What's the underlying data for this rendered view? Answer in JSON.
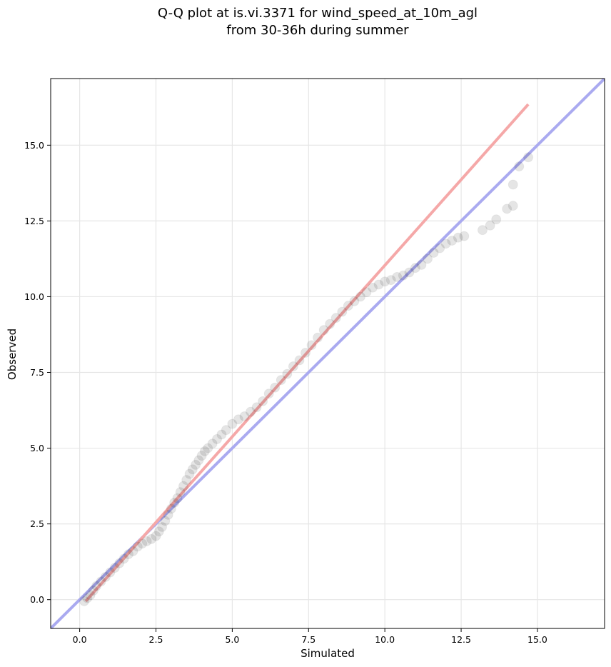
{
  "chart_data": {
    "type": "scatter",
    "title": "Q-Q plot at is.vi.3371 for wind_speed_at_10m_agl",
    "subtitle": "from 30-36h during summer",
    "xlabel": "Simulated",
    "ylabel": "Observed",
    "xlim": [
      -0.95,
      17.2
    ],
    "ylim": [
      -0.95,
      17.2
    ],
    "xticks": [
      0.0,
      2.5,
      5.0,
      7.5,
      10.0,
      12.5,
      15.0
    ],
    "yticks": [
      0.0,
      2.5,
      5.0,
      7.5,
      10.0,
      12.5,
      15.0
    ],
    "xtick_labels": [
      "0.0",
      "2.5",
      "5.0",
      "7.5",
      "10.0",
      "12.5",
      "15.0"
    ],
    "ytick_labels": [
      "0.0",
      "2.5",
      "5.0",
      "7.5",
      "10.0",
      "12.5",
      "15.0"
    ],
    "grid": true,
    "lines": [
      {
        "style": "one-to-one reference",
        "color": "#aaaaf0",
        "x": [
          -0.95,
          17.2
        ],
        "y": [
          -0.95,
          17.2
        ]
      },
      {
        "style": "fit",
        "color": "#f5a8a8",
        "x": [
          0.2,
          14.7
        ],
        "y": [
          -0.05,
          16.35
        ]
      }
    ],
    "series": [
      {
        "color": "#000000",
        "points": [
          [
            0.15,
            -0.05
          ],
          [
            0.25,
            0.05
          ],
          [
            0.35,
            0.15
          ],
          [
            0.45,
            0.3
          ],
          [
            0.55,
            0.45
          ],
          [
            0.7,
            0.6
          ],
          [
            0.85,
            0.75
          ],
          [
            1.0,
            0.9
          ],
          [
            1.15,
            1.05
          ],
          [
            1.3,
            1.2
          ],
          [
            1.45,
            1.35
          ],
          [
            1.6,
            1.5
          ],
          [
            1.75,
            1.6
          ],
          [
            1.9,
            1.75
          ],
          [
            2.05,
            1.85
          ],
          [
            2.2,
            1.93
          ],
          [
            2.35,
            2.0
          ],
          [
            2.5,
            2.1
          ],
          [
            2.6,
            2.25
          ],
          [
            2.7,
            2.4
          ],
          [
            2.8,
            2.6
          ],
          [
            2.9,
            2.8
          ],
          [
            3.0,
            3.0
          ],
          [
            3.1,
            3.2
          ],
          [
            3.2,
            3.35
          ],
          [
            3.3,
            3.55
          ],
          [
            3.4,
            3.75
          ],
          [
            3.5,
            3.95
          ],
          [
            3.6,
            4.15
          ],
          [
            3.7,
            4.3
          ],
          [
            3.8,
            4.45
          ],
          [
            3.9,
            4.6
          ],
          [
            4.0,
            4.75
          ],
          [
            4.1,
            4.9
          ],
          [
            4.2,
            5.0
          ],
          [
            4.35,
            5.15
          ],
          [
            4.5,
            5.3
          ],
          [
            4.65,
            5.45
          ],
          [
            4.8,
            5.6
          ],
          [
            5.0,
            5.8
          ],
          [
            5.2,
            5.95
          ],
          [
            5.4,
            6.05
          ],
          [
            5.6,
            6.2
          ],
          [
            5.8,
            6.35
          ],
          [
            6.0,
            6.55
          ],
          [
            6.2,
            6.8
          ],
          [
            6.4,
            7.0
          ],
          [
            6.6,
            7.25
          ],
          [
            6.8,
            7.45
          ],
          [
            7.0,
            7.7
          ],
          [
            7.2,
            7.9
          ],
          [
            7.4,
            8.15
          ],
          [
            7.6,
            8.4
          ],
          [
            7.8,
            8.65
          ],
          [
            8.0,
            8.9
          ],
          [
            8.2,
            9.1
          ],
          [
            8.4,
            9.3
          ],
          [
            8.6,
            9.5
          ],
          [
            8.8,
            9.7
          ],
          [
            9.0,
            9.85
          ],
          [
            9.2,
            10.0
          ],
          [
            9.4,
            10.15
          ],
          [
            9.6,
            10.3
          ],
          [
            9.8,
            10.4
          ],
          [
            10.0,
            10.5
          ],
          [
            10.2,
            10.55
          ],
          [
            10.4,
            10.65
          ],
          [
            10.6,
            10.7
          ],
          [
            10.8,
            10.8
          ],
          [
            11.0,
            10.95
          ],
          [
            11.2,
            11.05
          ],
          [
            11.4,
            11.25
          ],
          [
            11.6,
            11.45
          ],
          [
            11.8,
            11.6
          ],
          [
            12.0,
            11.75
          ],
          [
            12.2,
            11.85
          ],
          [
            12.4,
            11.95
          ],
          [
            12.6,
            12.0
          ],
          [
            13.2,
            12.2
          ],
          [
            13.45,
            12.35
          ],
          [
            13.65,
            12.55
          ],
          [
            14.0,
            12.9
          ],
          [
            14.2,
            13.0
          ],
          [
            14.2,
            13.7
          ],
          [
            14.4,
            14.3
          ],
          [
            14.7,
            14.6
          ]
        ]
      }
    ]
  }
}
